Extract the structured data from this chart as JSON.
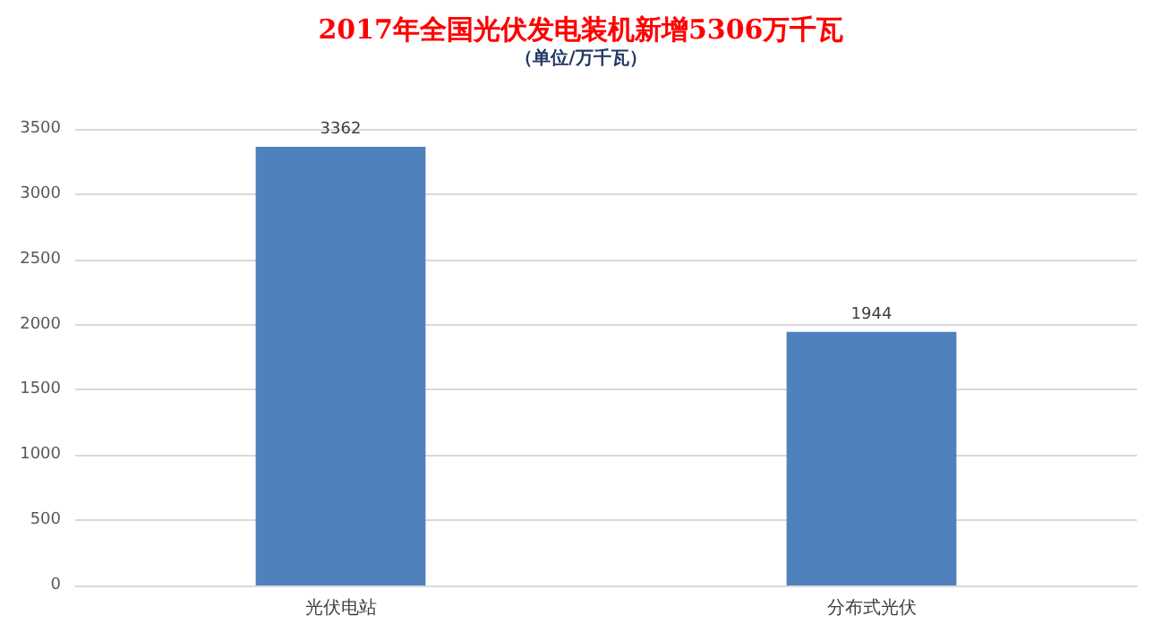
{
  "chart_data": {
    "type": "bar",
    "title": "2017年全国光伏发电装机新增5306万千瓦",
    "subtitle": "（单位/万千瓦）",
    "categories": [
      "光伏电站",
      "分布式光伏"
    ],
    "values": [
      3362,
      1944
    ],
    "color": "#4f81bd",
    "ylim": [
      0,
      3500
    ],
    "yticks": [
      0,
      500,
      1000,
      1500,
      2000,
      2500,
      3000,
      3500
    ],
    "grid": "y",
    "data_labels": true
  }
}
